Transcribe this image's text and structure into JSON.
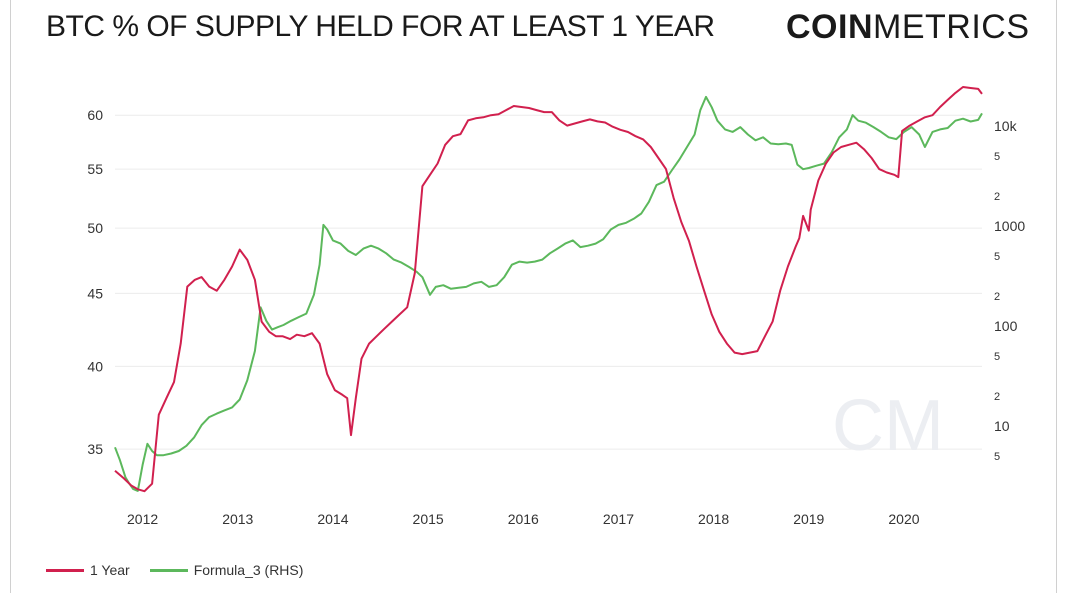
{
  "title": "BTC % OF SUPPLY HELD FOR AT LEAST 1 YEAR",
  "brand": {
    "bold": "COIN",
    "light": "METRICS",
    "watermark": "CM"
  },
  "colors": {
    "one_year": "#d1204e",
    "formula": "#5cb85c",
    "grid": "#ececec"
  },
  "legend": [
    {
      "name": "1 Year",
      "color": "#d1204e"
    },
    {
      "name": "Formula_3 (RHS)",
      "color": "#5cb85c"
    }
  ],
  "chart_data": {
    "type": "line",
    "x_ticks": [
      "2012",
      "2013",
      "2014",
      "2015",
      "2016",
      "2017",
      "2018",
      "2019",
      "2020"
    ],
    "y_left_ticks": [
      "35",
      "40",
      "45",
      "50",
      "55",
      "60"
    ],
    "y_right_ticks": [
      "5",
      "10",
      "2",
      "5",
      "100",
      "2",
      "5",
      "1000",
      "2",
      "5",
      "10k"
    ],
    "x_range": [
      2011.71,
      2020.82
    ],
    "y_left_scale": "log",
    "y_left_range": [
      32.5,
      63.0
    ],
    "y_right_scale": "log",
    "y_right_range": [
      2.0,
      25000
    ],
    "grid": "horizontal",
    "legend_position": "bottom-left",
    "series": [
      {
        "name": "1 Year",
        "axis": "left",
        "points": [
          [
            2011.71,
            33.8
          ],
          [
            2011.8,
            33.4
          ],
          [
            2011.88,
            33.0
          ],
          [
            2011.95,
            32.8
          ],
          [
            2012.02,
            32.7
          ],
          [
            2012.1,
            33.1
          ],
          [
            2012.17,
            37.0
          ],
          [
            2012.25,
            38.0
          ],
          [
            2012.33,
            39.0
          ],
          [
            2012.4,
            41.5
          ],
          [
            2012.47,
            45.5
          ],
          [
            2012.55,
            46.0
          ],
          [
            2012.62,
            46.2
          ],
          [
            2012.7,
            45.5
          ],
          [
            2012.78,
            45.2
          ],
          [
            2012.86,
            46.0
          ],
          [
            2012.94,
            47.0
          ],
          [
            2013.02,
            48.3
          ],
          [
            2013.1,
            47.5
          ],
          [
            2013.18,
            46.0
          ],
          [
            2013.25,
            43.0
          ],
          [
            2013.33,
            42.3
          ],
          [
            2013.4,
            42.0
          ],
          [
            2013.47,
            42.0
          ],
          [
            2013.55,
            41.8
          ],
          [
            2013.62,
            42.1
          ],
          [
            2013.7,
            42.0
          ],
          [
            2013.78,
            42.2
          ],
          [
            2013.86,
            41.5
          ],
          [
            2013.94,
            39.5
          ],
          [
            2014.02,
            38.5
          ],
          [
            2014.1,
            38.2
          ],
          [
            2014.15,
            38.0
          ],
          [
            2014.19,
            35.8
          ],
          [
            2014.24,
            38.0
          ],
          [
            2014.3,
            40.5
          ],
          [
            2014.38,
            41.5
          ],
          [
            2014.46,
            42.0
          ],
          [
            2014.54,
            42.5
          ],
          [
            2014.62,
            43.0
          ],
          [
            2014.7,
            43.5
          ],
          [
            2014.78,
            44.0
          ],
          [
            2014.86,
            46.5
          ],
          [
            2014.94,
            53.5
          ],
          [
            2015.02,
            54.5
          ],
          [
            2015.1,
            55.5
          ],
          [
            2015.18,
            57.2
          ],
          [
            2015.26,
            58.0
          ],
          [
            2015.34,
            58.2
          ],
          [
            2015.42,
            59.5
          ],
          [
            2015.5,
            59.7
          ],
          [
            2015.58,
            59.8
          ],
          [
            2015.66,
            60.0
          ],
          [
            2015.74,
            60.1
          ],
          [
            2015.82,
            60.5
          ],
          [
            2015.9,
            60.9
          ],
          [
            2015.98,
            60.8
          ],
          [
            2016.06,
            60.7
          ],
          [
            2016.14,
            60.5
          ],
          [
            2016.22,
            60.3
          ],
          [
            2016.3,
            60.3
          ],
          [
            2016.38,
            59.5
          ],
          [
            2016.46,
            59.0
          ],
          [
            2016.54,
            59.2
          ],
          [
            2016.62,
            59.4
          ],
          [
            2016.7,
            59.6
          ],
          [
            2016.78,
            59.4
          ],
          [
            2016.86,
            59.3
          ],
          [
            2016.94,
            58.9
          ],
          [
            2017.02,
            58.6
          ],
          [
            2017.1,
            58.4
          ],
          [
            2017.18,
            58.0
          ],
          [
            2017.26,
            57.7
          ],
          [
            2017.34,
            57.0
          ],
          [
            2017.42,
            56.0
          ],
          [
            2017.5,
            55.0
          ],
          [
            2017.58,
            52.5
          ],
          [
            2017.66,
            50.5
          ],
          [
            2017.74,
            49.0
          ],
          [
            2017.82,
            47.0
          ],
          [
            2017.9,
            45.2
          ],
          [
            2017.98,
            43.5
          ],
          [
            2018.06,
            42.3
          ],
          [
            2018.14,
            41.5
          ],
          [
            2018.22,
            40.9
          ],
          [
            2018.3,
            40.8
          ],
          [
            2018.38,
            40.9
          ],
          [
            2018.46,
            41.0
          ],
          [
            2018.54,
            42.0
          ],
          [
            2018.62,
            43.0
          ],
          [
            2018.7,
            45.2
          ],
          [
            2018.78,
            47.0
          ],
          [
            2018.86,
            48.5
          ],
          [
            2018.9,
            49.2
          ],
          [
            2018.94,
            51.0
          ],
          [
            2019.0,
            49.8
          ],
          [
            2019.02,
            51.5
          ],
          [
            2019.1,
            54.0
          ],
          [
            2019.18,
            55.5
          ],
          [
            2019.26,
            56.5
          ],
          [
            2019.34,
            57.0
          ],
          [
            2019.42,
            57.2
          ],
          [
            2019.5,
            57.4
          ],
          [
            2019.58,
            56.8
          ],
          [
            2019.66,
            56.0
          ],
          [
            2019.74,
            55.0
          ],
          [
            2019.82,
            54.7
          ],
          [
            2019.9,
            54.5
          ],
          [
            2019.94,
            54.3
          ],
          [
            2019.98,
            58.5
          ],
          [
            2020.06,
            59.0
          ],
          [
            2020.14,
            59.4
          ],
          [
            2020.22,
            59.8
          ],
          [
            2020.3,
            60.0
          ],
          [
            2020.38,
            60.8
          ],
          [
            2020.46,
            61.5
          ],
          [
            2020.54,
            62.2
          ],
          [
            2020.62,
            62.8
          ],
          [
            2020.7,
            62.7
          ],
          [
            2020.78,
            62.6
          ],
          [
            2020.82,
            62.1
          ]
        ]
      },
      {
        "name": "Formula_3 (RHS)",
        "axis": "right",
        "points": [
          [
            2011.71,
            6.0
          ],
          [
            2011.76,
            4.5
          ],
          [
            2011.82,
            3.0
          ],
          [
            2011.86,
            2.6
          ],
          [
            2011.9,
            2.3
          ],
          [
            2011.95,
            2.2
          ],
          [
            2012.0,
            4.0
          ],
          [
            2012.05,
            6.5
          ],
          [
            2012.1,
            5.5
          ],
          [
            2012.15,
            5.0
          ],
          [
            2012.22,
            5.0
          ],
          [
            2012.3,
            5.2
          ],
          [
            2012.38,
            5.5
          ],
          [
            2012.46,
            6.2
          ],
          [
            2012.54,
            7.5
          ],
          [
            2012.62,
            10.0
          ],
          [
            2012.7,
            12.0
          ],
          [
            2012.78,
            13.0
          ],
          [
            2012.86,
            14.0
          ],
          [
            2012.94,
            15.0
          ],
          [
            2013.02,
            18.0
          ],
          [
            2013.1,
            28.0
          ],
          [
            2013.18,
            55.0
          ],
          [
            2013.24,
            150.0
          ],
          [
            2013.3,
            110.0
          ],
          [
            2013.36,
            90.0
          ],
          [
            2013.42,
            95.0
          ],
          [
            2013.48,
            100.0
          ],
          [
            2013.56,
            110.0
          ],
          [
            2013.64,
            120.0
          ],
          [
            2013.72,
            130.0
          ],
          [
            2013.8,
            200.0
          ],
          [
            2013.86,
            400.0
          ],
          [
            2013.9,
            1000.0
          ],
          [
            2013.94,
            900.0
          ],
          [
            2014.0,
            700.0
          ],
          [
            2014.08,
            650.0
          ],
          [
            2014.16,
            550.0
          ],
          [
            2014.24,
            500.0
          ],
          [
            2014.32,
            580.0
          ],
          [
            2014.4,
            620.0
          ],
          [
            2014.48,
            580.0
          ],
          [
            2014.56,
            520.0
          ],
          [
            2014.64,
            450.0
          ],
          [
            2014.72,
            420.0
          ],
          [
            2014.8,
            380.0
          ],
          [
            2014.88,
            340.0
          ],
          [
            2014.94,
            300.0
          ],
          [
            2015.02,
            200.0
          ],
          [
            2015.08,
            240.0
          ],
          [
            2015.16,
            250.0
          ],
          [
            2015.24,
            230.0
          ],
          [
            2015.32,
            235.0
          ],
          [
            2015.4,
            240.0
          ],
          [
            2015.48,
            260.0
          ],
          [
            2015.56,
            270.0
          ],
          [
            2015.64,
            240.0
          ],
          [
            2015.72,
            250.0
          ],
          [
            2015.8,
            300.0
          ],
          [
            2015.88,
            400.0
          ],
          [
            2015.96,
            430.0
          ],
          [
            2016.04,
            420.0
          ],
          [
            2016.12,
            430.0
          ],
          [
            2016.2,
            450.0
          ],
          [
            2016.28,
            520.0
          ],
          [
            2016.36,
            580.0
          ],
          [
            2016.44,
            650.0
          ],
          [
            2016.52,
            700.0
          ],
          [
            2016.6,
            600.0
          ],
          [
            2016.68,
            620.0
          ],
          [
            2016.76,
            650.0
          ],
          [
            2016.84,
            720.0
          ],
          [
            2016.92,
            900.0
          ],
          [
            2017.0,
            1000.0
          ],
          [
            2017.08,
            1050.0
          ],
          [
            2017.16,
            1150.0
          ],
          [
            2017.24,
            1300.0
          ],
          [
            2017.32,
            1700.0
          ],
          [
            2017.4,
            2500.0
          ],
          [
            2017.48,
            2700.0
          ],
          [
            2017.56,
            3500.0
          ],
          [
            2017.64,
            4500.0
          ],
          [
            2017.72,
            6000.0
          ],
          [
            2017.8,
            8000.0
          ],
          [
            2017.86,
            14000.0
          ],
          [
            2017.92,
            19000.0
          ],
          [
            2017.98,
            15000.0
          ],
          [
            2018.04,
            11000.0
          ],
          [
            2018.12,
            9000.0
          ],
          [
            2018.2,
            8500.0
          ],
          [
            2018.28,
            9500.0
          ],
          [
            2018.36,
            8000.0
          ],
          [
            2018.44,
            7000.0
          ],
          [
            2018.52,
            7500.0
          ],
          [
            2018.6,
            6500.0
          ],
          [
            2018.68,
            6400.0
          ],
          [
            2018.76,
            6500.0
          ],
          [
            2018.82,
            6300.0
          ],
          [
            2018.88,
            4000.0
          ],
          [
            2018.94,
            3600.0
          ],
          [
            2019.0,
            3700.0
          ],
          [
            2019.08,
            3900.0
          ],
          [
            2019.16,
            4100.0
          ],
          [
            2019.24,
            5300.0
          ],
          [
            2019.32,
            7500.0
          ],
          [
            2019.4,
            9000.0
          ],
          [
            2019.46,
            12500.0
          ],
          [
            2019.52,
            11000.0
          ],
          [
            2019.6,
            10500.0
          ],
          [
            2019.68,
            9500.0
          ],
          [
            2019.76,
            8500.0
          ],
          [
            2019.84,
            7500.0
          ],
          [
            2019.92,
            7200.0
          ],
          [
            2020.0,
            8500.0
          ],
          [
            2020.08,
            9500.0
          ],
          [
            2020.16,
            8000.0
          ],
          [
            2020.22,
            6000.0
          ],
          [
            2020.3,
            8500.0
          ],
          [
            2020.38,
            9000.0
          ],
          [
            2020.46,
            9300.0
          ],
          [
            2020.54,
            11000.0
          ],
          [
            2020.62,
            11500.0
          ],
          [
            2020.7,
            10800.0
          ],
          [
            2020.78,
            11200.0
          ],
          [
            2020.82,
            13000.0
          ]
        ]
      }
    ]
  }
}
